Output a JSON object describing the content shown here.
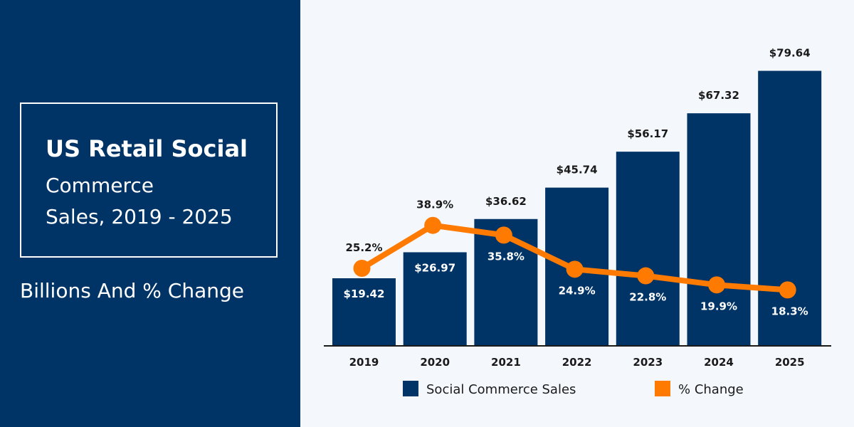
{
  "title": {
    "line1": "US Retail Social",
    "line2": "Commerce",
    "line3": "Sales, 2019 - 2025"
  },
  "subtitle": "Billions And % Change",
  "colors": {
    "panel": "#003466",
    "bar": "#003466",
    "line": "#ff7a00",
    "background": "#f4f8fc"
  },
  "chart_data": {
    "type": "bar",
    "categories": [
      "2019",
      "2020",
      "2021",
      "2022",
      "2023",
      "2024",
      "2025"
    ],
    "series": [
      {
        "name": "Social Commerce Sales",
        "type": "bar",
        "values": [
          19.42,
          26.97,
          36.62,
          45.74,
          56.17,
          67.32,
          79.64
        ],
        "labels": [
          "$19.42",
          "$26.97",
          "$36.62",
          "$45.74",
          "$56.17",
          "$67.32",
          "$79.64"
        ]
      },
      {
        "name": "% Change",
        "type": "line",
        "values": [
          25.2,
          38.9,
          35.8,
          24.9,
          22.8,
          19.9,
          18.3
        ],
        "labels": [
          "25.2%",
          "38.9%",
          "35.8%",
          "24.9%",
          "22.8%",
          "19.9%",
          "18.3%"
        ]
      }
    ],
    "legend": [
      {
        "label": "Social Commerce Sales",
        "color": "#003466"
      },
      {
        "label": "% Change",
        "color": "#ff7a00"
      }
    ],
    "legend_position": "bottom",
    "grid": false
  }
}
